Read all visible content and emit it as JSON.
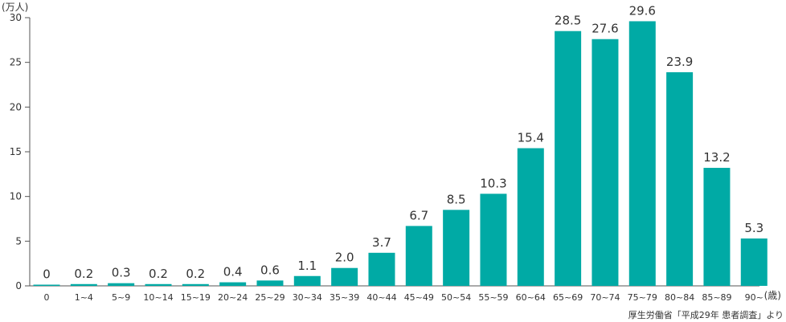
{
  "chart_data": {
    "type": "bar",
    "y_unit": "(万人)",
    "x_unit": "(歳)",
    "source": "厚生労働省「平成29年 患者調査」より",
    "categories": [
      "0",
      "1~4",
      "5~9",
      "10~14",
      "15~19",
      "20~24",
      "25~29",
      "30~34",
      "35~39",
      "40~44",
      "45~49",
      "50~54",
      "55~59",
      "60~64",
      "65~69",
      "70~74",
      "75~79",
      "80~84",
      "85~89",
      "90~"
    ],
    "values": [
      0,
      0.2,
      0.3,
      0.2,
      0.2,
      0.4,
      0.6,
      1.1,
      2.0,
      3.7,
      6.7,
      8.5,
      10.3,
      15.4,
      28.5,
      27.6,
      29.6,
      23.9,
      13.2,
      5.3
    ],
    "value_labels": [
      "0",
      "0.2",
      "0.3",
      "0.2",
      "0.2",
      "0.4",
      "0.6",
      "1.1",
      "2.0",
      "3.7",
      "6.7",
      "8.5",
      "10.3",
      "15.4",
      "28.5",
      "27.6",
      "29.6",
      "23.9",
      "13.2",
      "5.3"
    ],
    "y_ticks": [
      0,
      5,
      10,
      15,
      20,
      25,
      30
    ],
    "ylim": [
      0,
      30
    ],
    "bar_color": "#00aaa5",
    "grid": false
  }
}
